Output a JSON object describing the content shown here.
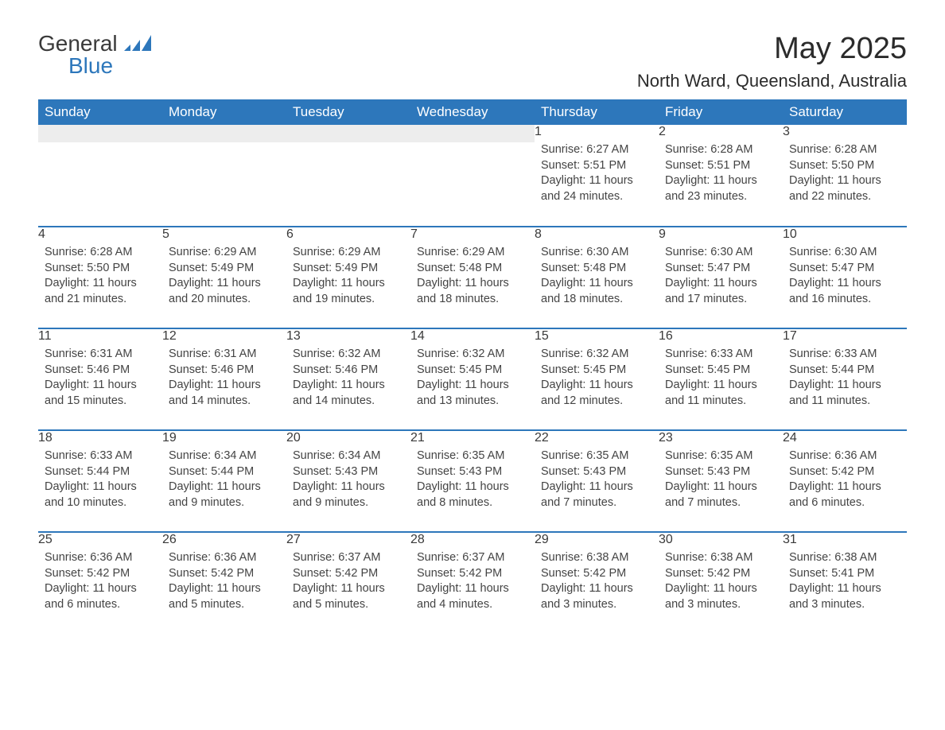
{
  "logo": {
    "word1": "General",
    "word2": "Blue"
  },
  "header": {
    "month_title": "May 2025",
    "location": "North Ward, Queensland, Australia"
  },
  "colors": {
    "brand_blue": "#2d77bb",
    "header_text": "#ffffff",
    "daynum_bg": "#ededed",
    "body_text": "#444444",
    "page_bg": "#ffffff"
  },
  "calendar": {
    "day_headers": [
      "Sunday",
      "Monday",
      "Tuesday",
      "Wednesday",
      "Thursday",
      "Friday",
      "Saturday"
    ],
    "weeks": [
      [
        null,
        null,
        null,
        null,
        {
          "n": "1",
          "sunrise": "Sunrise: 6:27 AM",
          "sunset": "Sunset: 5:51 PM",
          "daylight": "Daylight: 11 hours and 24 minutes."
        },
        {
          "n": "2",
          "sunrise": "Sunrise: 6:28 AM",
          "sunset": "Sunset: 5:51 PM",
          "daylight": "Daylight: 11 hours and 23 minutes."
        },
        {
          "n": "3",
          "sunrise": "Sunrise: 6:28 AM",
          "sunset": "Sunset: 5:50 PM",
          "daylight": "Daylight: 11 hours and 22 minutes."
        }
      ],
      [
        {
          "n": "4",
          "sunrise": "Sunrise: 6:28 AM",
          "sunset": "Sunset: 5:50 PM",
          "daylight": "Daylight: 11 hours and 21 minutes."
        },
        {
          "n": "5",
          "sunrise": "Sunrise: 6:29 AM",
          "sunset": "Sunset: 5:49 PM",
          "daylight": "Daylight: 11 hours and 20 minutes."
        },
        {
          "n": "6",
          "sunrise": "Sunrise: 6:29 AM",
          "sunset": "Sunset: 5:49 PM",
          "daylight": "Daylight: 11 hours and 19 minutes."
        },
        {
          "n": "7",
          "sunrise": "Sunrise: 6:29 AM",
          "sunset": "Sunset: 5:48 PM",
          "daylight": "Daylight: 11 hours and 18 minutes."
        },
        {
          "n": "8",
          "sunrise": "Sunrise: 6:30 AM",
          "sunset": "Sunset: 5:48 PM",
          "daylight": "Daylight: 11 hours and 18 minutes."
        },
        {
          "n": "9",
          "sunrise": "Sunrise: 6:30 AM",
          "sunset": "Sunset: 5:47 PM",
          "daylight": "Daylight: 11 hours and 17 minutes."
        },
        {
          "n": "10",
          "sunrise": "Sunrise: 6:30 AM",
          "sunset": "Sunset: 5:47 PM",
          "daylight": "Daylight: 11 hours and 16 minutes."
        }
      ],
      [
        {
          "n": "11",
          "sunrise": "Sunrise: 6:31 AM",
          "sunset": "Sunset: 5:46 PM",
          "daylight": "Daylight: 11 hours and 15 minutes."
        },
        {
          "n": "12",
          "sunrise": "Sunrise: 6:31 AM",
          "sunset": "Sunset: 5:46 PM",
          "daylight": "Daylight: 11 hours and 14 minutes."
        },
        {
          "n": "13",
          "sunrise": "Sunrise: 6:32 AM",
          "sunset": "Sunset: 5:46 PM",
          "daylight": "Daylight: 11 hours and 14 minutes."
        },
        {
          "n": "14",
          "sunrise": "Sunrise: 6:32 AM",
          "sunset": "Sunset: 5:45 PM",
          "daylight": "Daylight: 11 hours and 13 minutes."
        },
        {
          "n": "15",
          "sunrise": "Sunrise: 6:32 AM",
          "sunset": "Sunset: 5:45 PM",
          "daylight": "Daylight: 11 hours and 12 minutes."
        },
        {
          "n": "16",
          "sunrise": "Sunrise: 6:33 AM",
          "sunset": "Sunset: 5:45 PM",
          "daylight": "Daylight: 11 hours and 11 minutes."
        },
        {
          "n": "17",
          "sunrise": "Sunrise: 6:33 AM",
          "sunset": "Sunset: 5:44 PM",
          "daylight": "Daylight: 11 hours and 11 minutes."
        }
      ],
      [
        {
          "n": "18",
          "sunrise": "Sunrise: 6:33 AM",
          "sunset": "Sunset: 5:44 PM",
          "daylight": "Daylight: 11 hours and 10 minutes."
        },
        {
          "n": "19",
          "sunrise": "Sunrise: 6:34 AM",
          "sunset": "Sunset: 5:44 PM",
          "daylight": "Daylight: 11 hours and 9 minutes."
        },
        {
          "n": "20",
          "sunrise": "Sunrise: 6:34 AM",
          "sunset": "Sunset: 5:43 PM",
          "daylight": "Daylight: 11 hours and 9 minutes."
        },
        {
          "n": "21",
          "sunrise": "Sunrise: 6:35 AM",
          "sunset": "Sunset: 5:43 PM",
          "daylight": "Daylight: 11 hours and 8 minutes."
        },
        {
          "n": "22",
          "sunrise": "Sunrise: 6:35 AM",
          "sunset": "Sunset: 5:43 PM",
          "daylight": "Daylight: 11 hours and 7 minutes."
        },
        {
          "n": "23",
          "sunrise": "Sunrise: 6:35 AM",
          "sunset": "Sunset: 5:43 PM",
          "daylight": "Daylight: 11 hours and 7 minutes."
        },
        {
          "n": "24",
          "sunrise": "Sunrise: 6:36 AM",
          "sunset": "Sunset: 5:42 PM",
          "daylight": "Daylight: 11 hours and 6 minutes."
        }
      ],
      [
        {
          "n": "25",
          "sunrise": "Sunrise: 6:36 AM",
          "sunset": "Sunset: 5:42 PM",
          "daylight": "Daylight: 11 hours and 6 minutes."
        },
        {
          "n": "26",
          "sunrise": "Sunrise: 6:36 AM",
          "sunset": "Sunset: 5:42 PM",
          "daylight": "Daylight: 11 hours and 5 minutes."
        },
        {
          "n": "27",
          "sunrise": "Sunrise: 6:37 AM",
          "sunset": "Sunset: 5:42 PM",
          "daylight": "Daylight: 11 hours and 5 minutes."
        },
        {
          "n": "28",
          "sunrise": "Sunrise: 6:37 AM",
          "sunset": "Sunset: 5:42 PM",
          "daylight": "Daylight: 11 hours and 4 minutes."
        },
        {
          "n": "29",
          "sunrise": "Sunrise: 6:38 AM",
          "sunset": "Sunset: 5:42 PM",
          "daylight": "Daylight: 11 hours and 3 minutes."
        },
        {
          "n": "30",
          "sunrise": "Sunrise: 6:38 AM",
          "sunset": "Sunset: 5:42 PM",
          "daylight": "Daylight: 11 hours and 3 minutes."
        },
        {
          "n": "31",
          "sunrise": "Sunrise: 6:38 AM",
          "sunset": "Sunset: 5:41 PM",
          "daylight": "Daylight: 11 hours and 3 minutes."
        }
      ]
    ]
  }
}
